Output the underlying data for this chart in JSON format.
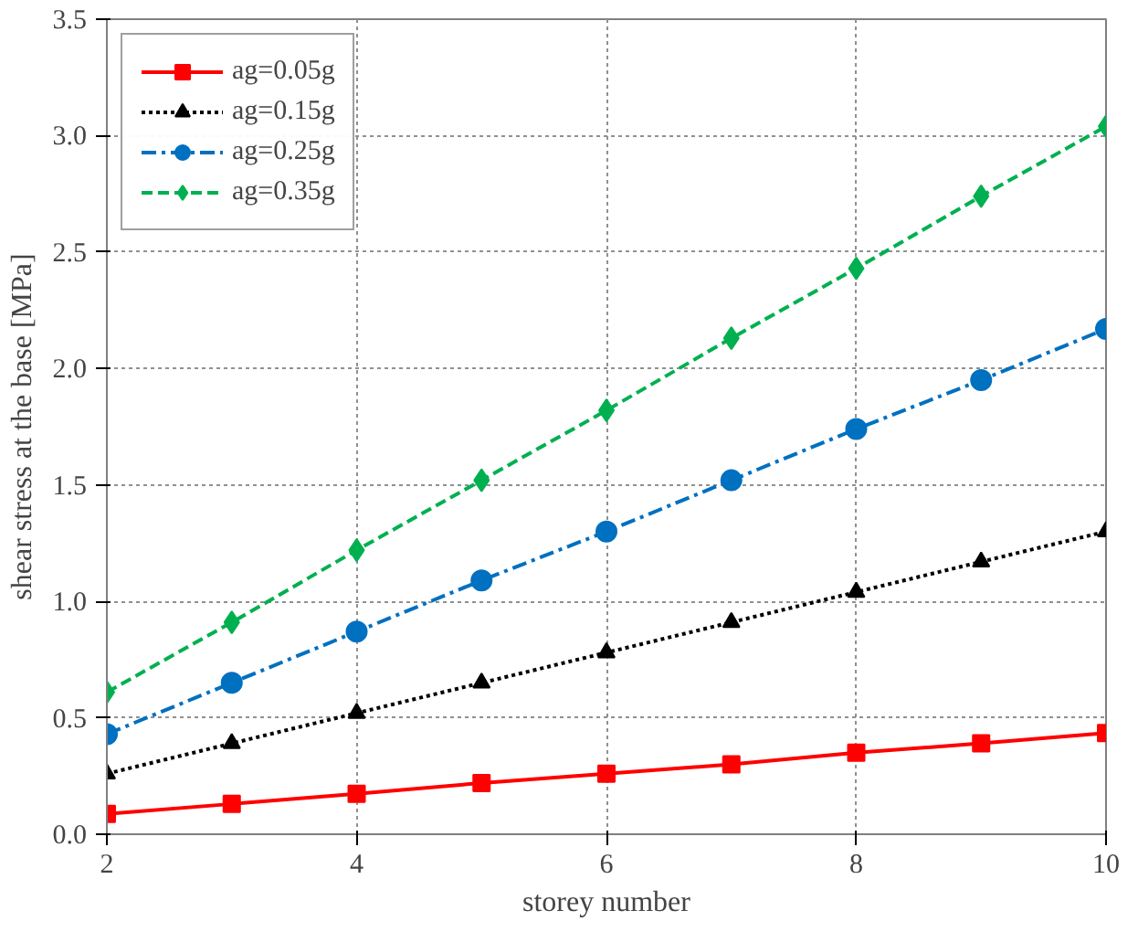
{
  "chart_data": {
    "type": "line",
    "xlabel": "storey number",
    "ylabel": "shear stress at the base [MPa]",
    "x": [
      2,
      3,
      4,
      5,
      6,
      7,
      8,
      9,
      10
    ],
    "xlim": [
      2,
      10
    ],
    "xticks": [
      2,
      4,
      6,
      8,
      10
    ],
    "ylim": [
      0,
      3.5
    ],
    "yticks": [
      {
        "value": 0,
        "label": "0.0"
      },
      0.5,
      {
        "value": 1,
        "label": "1.0"
      },
      1.5,
      {
        "value": 2,
        "label": "2.0"
      },
      2.5,
      {
        "value": 3,
        "label": "3.0"
      },
      3.5
    ],
    "grid": true,
    "legend": "top left",
    "series": [
      {
        "name": "ag=0.05g",
        "color": "#ff0000",
        "marker": "square",
        "line_style": "solid",
        "values": [
          0.087,
          0.13,
          0.174,
          0.22,
          0.26,
          0.3,
          0.35,
          0.39,
          0.435
        ]
      },
      {
        "name": "ag=0.15g",
        "color": "#000000",
        "marker": "triangle",
        "line_style": "dotted",
        "values": [
          0.26,
          0.39,
          0.52,
          0.65,
          0.78,
          0.91,
          1.04,
          1.17,
          1.3
        ]
      },
      {
        "name": "ag=0.25g",
        "color": "#0070c0",
        "marker": "circle",
        "line_style": "dashdot",
        "values": [
          0.43,
          0.65,
          0.87,
          1.09,
          1.3,
          1.52,
          1.74,
          1.95,
          2.17
        ]
      },
      {
        "name": "ag=0.35g",
        "color": "#00b050",
        "marker": "diamond",
        "line_style": "dashed",
        "values": [
          0.61,
          0.91,
          1.22,
          1.52,
          1.82,
          2.13,
          2.43,
          2.74,
          3.04
        ]
      }
    ]
  }
}
